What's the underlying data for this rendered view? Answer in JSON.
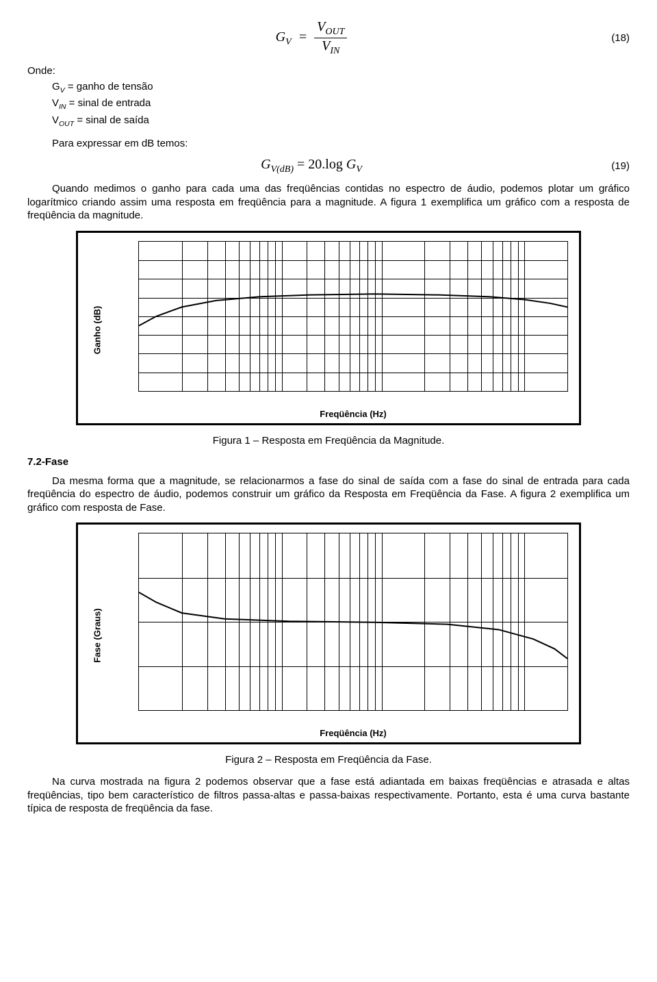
{
  "eq18": {
    "lhs": "G",
    "lhs_sub": "V",
    "num": "V",
    "num_sub": "OUT",
    "den": "V",
    "den_sub": "IN",
    "number": "(18)"
  },
  "defs": {
    "onde": "Onde:",
    "l1": "G",
    "l1_sub": "V",
    "l1_txt": " = ganho de tensão",
    "l2": "V",
    "l2_sub": "IN",
    "l2_txt": " = sinal de entrada",
    "l3": "V",
    "l3_sub": "OUT",
    "l3_txt": " = sinal de saída"
  },
  "p_db": "Para expressar em dB temos:",
  "eq19": {
    "lhs": "G",
    "lhs_sub": "V(dB)",
    "eq": " = 20.log",
    "rhs": "G",
    "rhs_sub": "V",
    "number": "(19)"
  },
  "p_after19": "Quando medimos o ganho para cada uma das freqüências contidas no espectro de áudio, podemos plotar um gráfico logarítmico criando assim uma resposta em freqüência para a magnitude. A figura 1 exemplifica um gráfico com a resposta de freqüência da magnitude.",
  "chart1": {
    "type": "line-log",
    "ylabel": "Ganho (dB)",
    "xlabel": "Freqüência (Hz)",
    "y_ticks": [
      -20,
      -10,
      0,
      10,
      20,
      30,
      40,
      50,
      60
    ],
    "ylim": [
      -20,
      60
    ],
    "x_decades": [
      "100",
      "1k",
      "10k"
    ],
    "line_color": "#000000",
    "line_width": 2,
    "background_color": "#ffffff",
    "grid_color": "#000000",
    "curve_points": [
      [
        0.0,
        15
      ],
      [
        0.04,
        20
      ],
      [
        0.1,
        25
      ],
      [
        0.18,
        28.5
      ],
      [
        0.28,
        30.5
      ],
      [
        0.4,
        31.5
      ],
      [
        0.55,
        32
      ],
      [
        0.7,
        31.5
      ],
      [
        0.82,
        30.5
      ],
      [
        0.9,
        29
      ],
      [
        0.96,
        27
      ],
      [
        1.0,
        25
      ]
    ]
  },
  "caption1": "Figura 1 – Resposta em Freqüência da Magnitude.",
  "sec72": "7.2-Fase",
  "p_fase": "Da mesma forma que a magnitude, se relacionarmos a fase do sinal de saída com a fase do sinal de entrada para cada freqüência do espectro de áudio, podemos construir um gráfico da Resposta em Freqüência da Fase. A figura 2 exemplifica um gráfico com resposta de Fase.",
  "chart2": {
    "type": "line-log",
    "ylabel": "Fase (Graus)",
    "xlabel": "Freqüência (Hz)",
    "y_ticks": [
      -180,
      -90,
      0,
      90,
      180
    ],
    "ylim": [
      -180,
      180
    ],
    "x_decades": [
      "100",
      "1k",
      "10k"
    ],
    "line_color": "#000000",
    "line_width": 2,
    "background_color": "#ffffff",
    "grid_color": "#000000",
    "curve_points": [
      [
        0.0,
        60
      ],
      [
        0.04,
        40
      ],
      [
        0.1,
        18
      ],
      [
        0.2,
        6
      ],
      [
        0.35,
        1
      ],
      [
        0.55,
        -1
      ],
      [
        0.72,
        -5
      ],
      [
        0.84,
        -16
      ],
      [
        0.92,
        -35
      ],
      [
        0.97,
        -55
      ],
      [
        1.0,
        -75
      ]
    ]
  },
  "caption2": "Figura 2 – Resposta em Freqüência da Fase.",
  "p_final": "Na curva mostrada na figura 2 podemos observar que a fase está adiantada em baixas freqüências e atrasada e altas freqüências, tipo bem característico de filtros passa-altas e passa-baixas respectivamente. Portanto, esta é uma curva bastante típica de resposta de freqüência da fase."
}
